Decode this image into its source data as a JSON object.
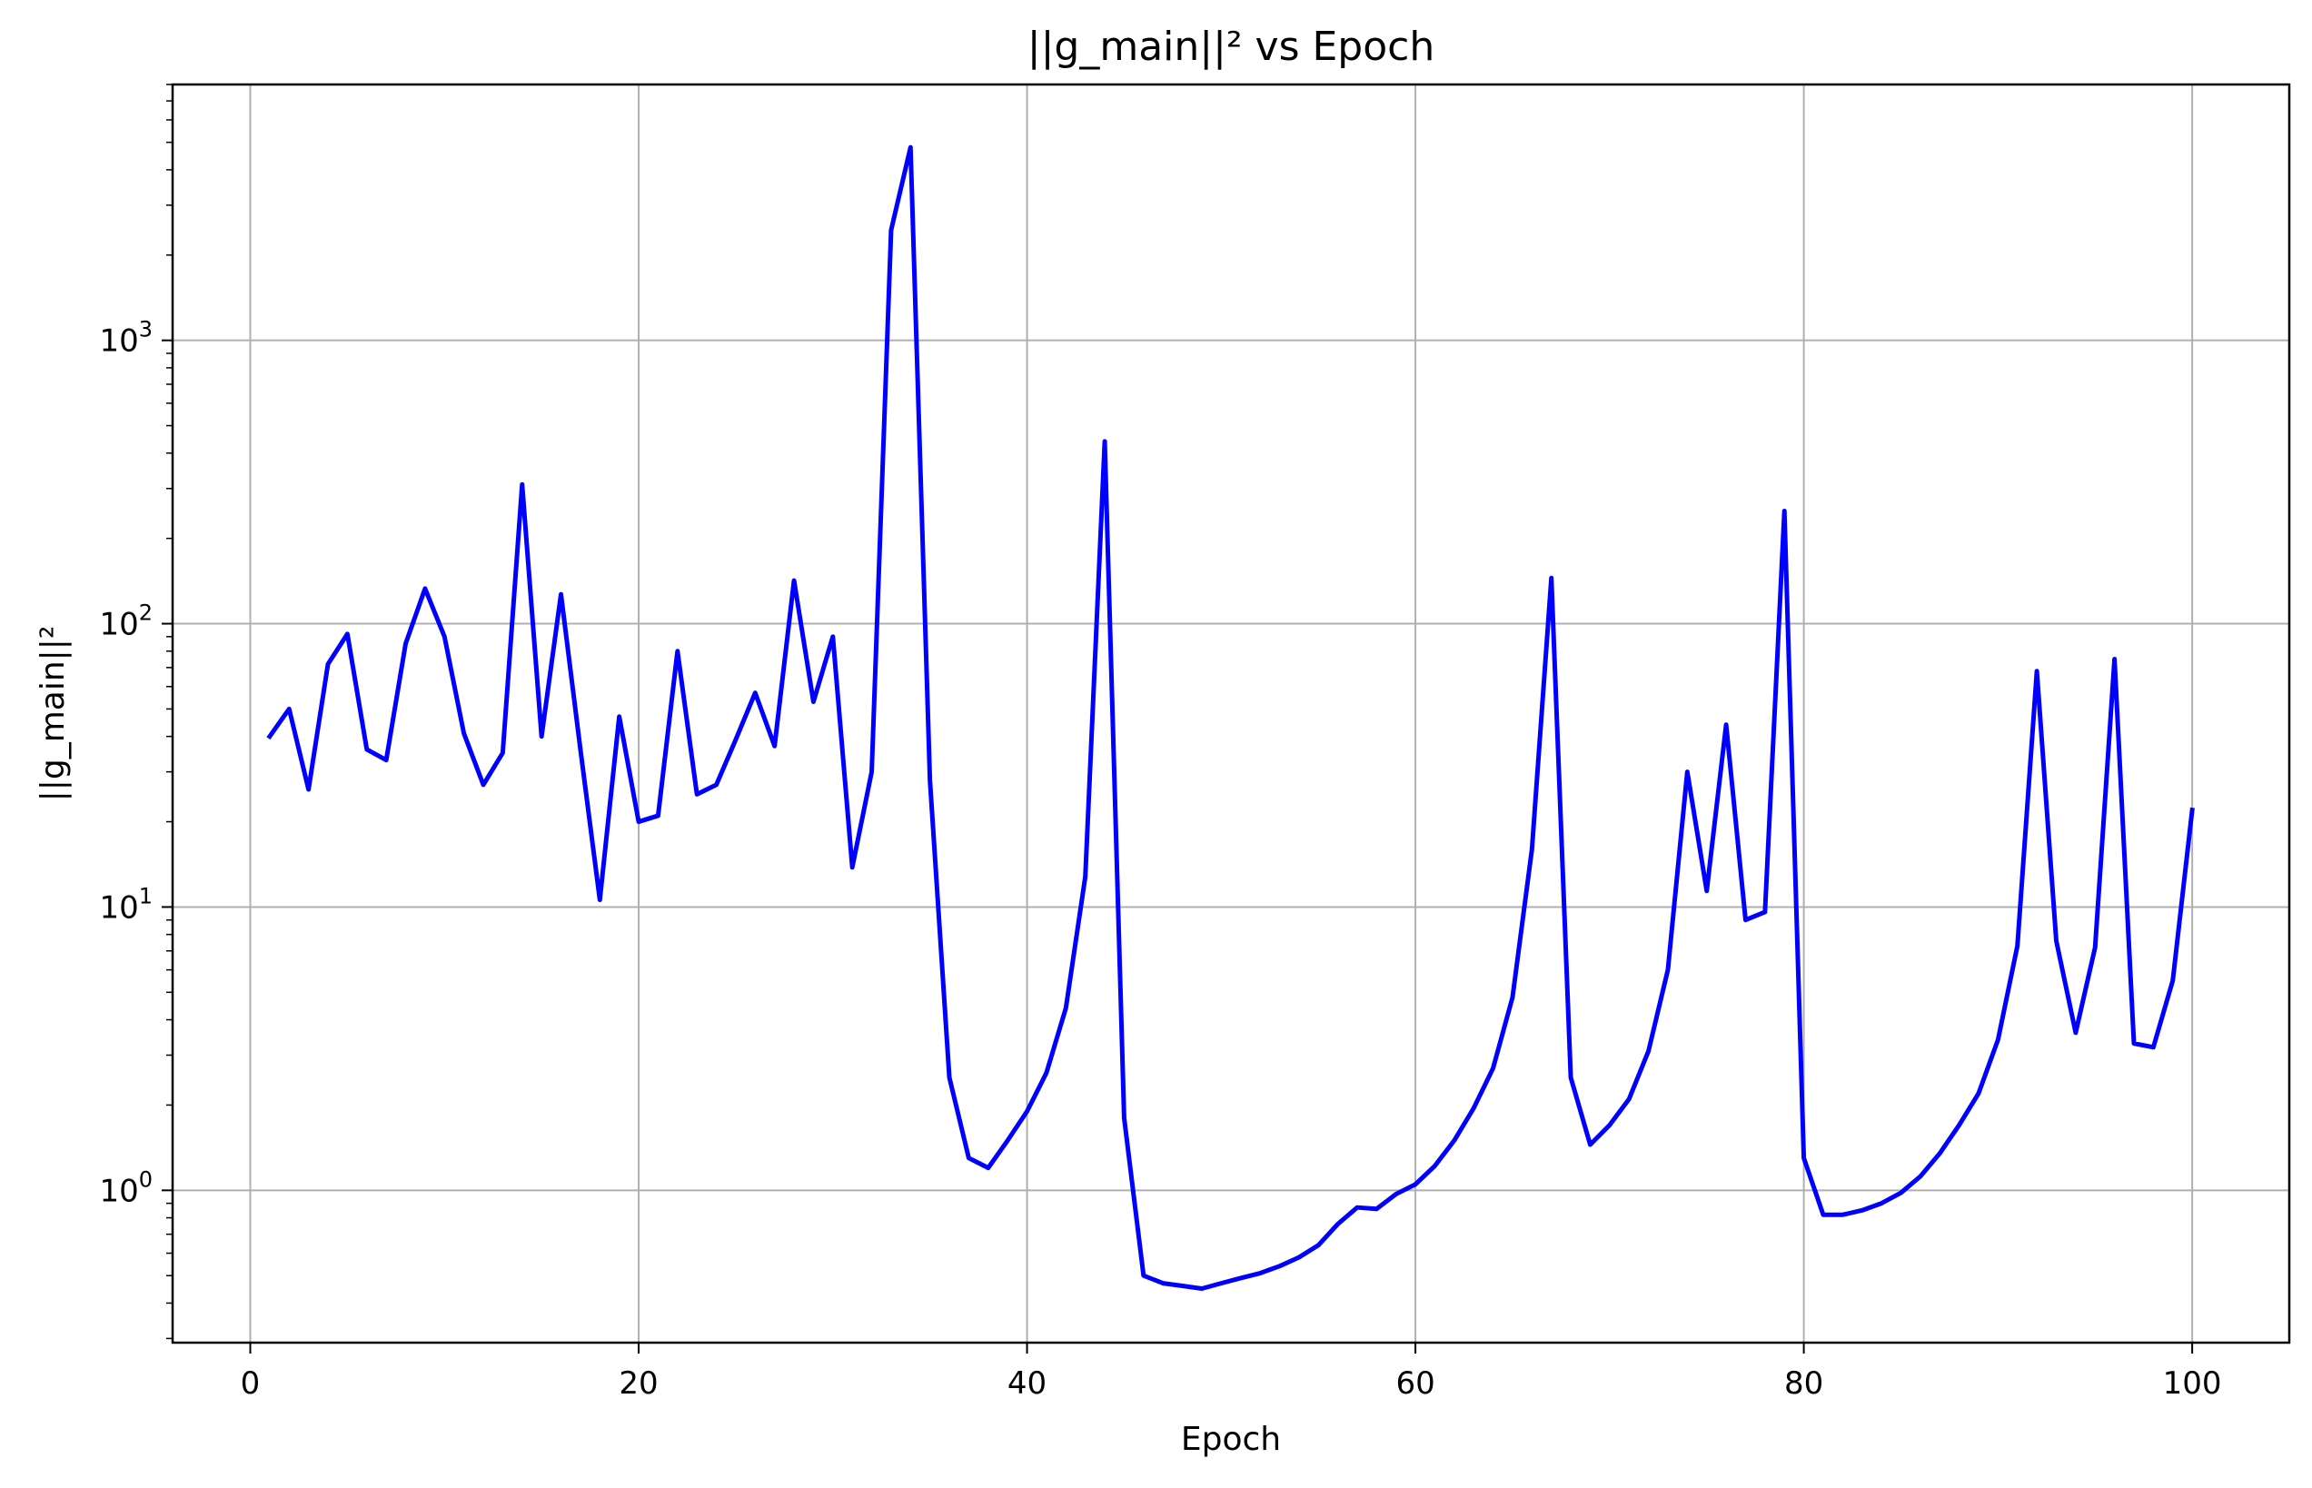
{
  "chart_data": {
    "type": "line",
    "title": "||g_main||² vs Epoch",
    "xlabel": "Epoch",
    "ylabel": "||g_main||²",
    "xlim": [
      -4,
      105
    ],
    "ylim": [
      0.29,
      8000
    ],
    "yscale": "log",
    "grid": true,
    "xticks": [
      0,
      20,
      40,
      60,
      80,
      100
    ],
    "yticks": [
      {
        "base": "10",
        "exp": "0",
        "value": 1
      },
      {
        "base": "10",
        "exp": "1",
        "value": 10
      },
      {
        "base": "10",
        "exp": "2",
        "value": 100
      },
      {
        "base": "10",
        "exp": "3",
        "value": 1000
      }
    ],
    "series": [
      {
        "color": "#0000ff",
        "x": [
          1,
          2,
          3,
          4,
          5,
          6,
          7,
          8,
          9,
          10,
          11,
          12,
          13,
          14,
          15,
          16,
          17,
          18,
          19,
          20,
          21,
          22,
          23,
          24,
          25,
          26,
          27,
          28,
          29,
          30,
          31,
          32,
          33,
          34,
          35,
          36,
          37,
          38,
          39,
          40,
          41,
          42,
          43,
          44,
          45,
          46,
          47,
          48,
          49,
          50,
          51,
          52,
          53,
          54,
          55,
          56,
          57,
          58,
          59,
          60,
          61,
          62,
          63,
          64,
          65,
          66,
          67,
          68,
          69,
          70,
          71,
          72,
          73,
          74,
          75,
          76,
          77,
          78,
          79,
          80,
          81,
          82,
          83,
          84,
          85,
          86,
          87,
          88,
          89,
          90,
          91,
          92,
          93,
          94,
          95,
          96,
          97,
          98,
          99,
          100
        ],
        "y": [
          40,
          50,
          26,
          72,
          92,
          36,
          33,
          85,
          133,
          90,
          41,
          27,
          35,
          310,
          40,
          127,
          36,
          10.6,
          47,
          20,
          21,
          80,
          25,
          27,
          39,
          57,
          37,
          142,
          53,
          90,
          13.8,
          30,
          2450,
          4800,
          28,
          2.5,
          1.3,
          1.2,
          1.5,
          1.9,
          2.6,
          4.4,
          12.8,
          440,
          1.8,
          0.5,
          0.47,
          0.46,
          0.45,
          0.47,
          0.49,
          0.51,
          0.54,
          0.58,
          0.64,
          0.76,
          0.87,
          0.86,
          0.97,
          1.05,
          1.22,
          1.5,
          1.95,
          2.7,
          4.8,
          16,
          145,
          2.5,
          1.45,
          1.7,
          2.1,
          3.1,
          6,
          30,
          11.4,
          44,
          9,
          9.6,
          250,
          1.3,
          0.82,
          0.82,
          0.85,
          0.9,
          0.98,
          1.12,
          1.35,
          1.7,
          2.2,
          3.4,
          7.3,
          68,
          7.6,
          3.6,
          7.2,
          75,
          3.3,
          3.2,
          5.5,
          22
        ]
      }
    ]
  }
}
